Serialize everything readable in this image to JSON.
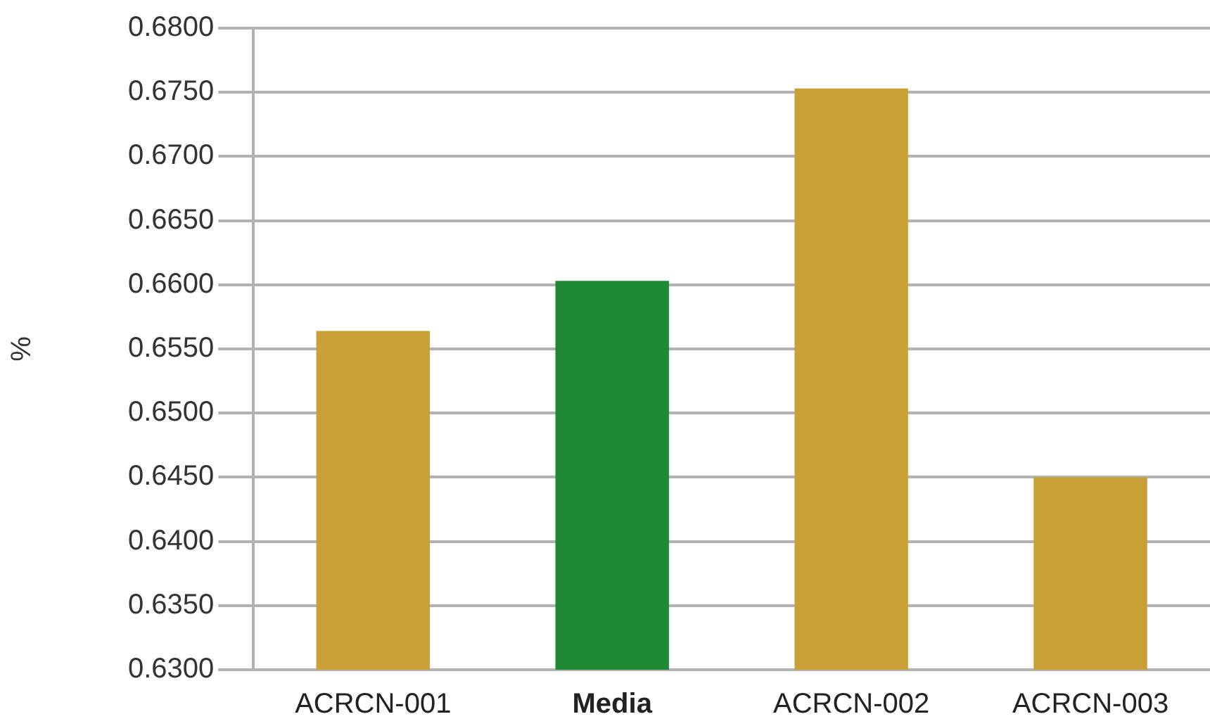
{
  "chart_data": {
    "type": "bar",
    "ylabel": "%",
    "categories": [
      "ACRCN-001",
      "Media",
      "ACRCN-002",
      "ACRCN-003"
    ],
    "values": [
      0.6564,
      0.6603,
      0.6753,
      0.645
    ],
    "colors": [
      "#c9a035",
      "#1f8a35",
      "#c9a035",
      "#c9a035"
    ],
    "ylim": [
      0.63,
      0.68
    ],
    "yticks": [
      {
        "value": 0.63,
        "label": "0.6300"
      },
      {
        "value": 0.635,
        "label": "0.6350"
      },
      {
        "value": 0.64,
        "label": "0.6400"
      },
      {
        "value": 0.645,
        "label": "0.6450"
      },
      {
        "value": 0.65,
        "label": "0.6500"
      },
      {
        "value": 0.655,
        "label": "0.6550"
      },
      {
        "value": 0.66,
        "label": "0.6600"
      },
      {
        "value": 0.665,
        "label": "0.6650"
      },
      {
        "value": 0.67,
        "label": "0.6700"
      },
      {
        "value": 0.675,
        "label": "0.6750"
      },
      {
        "value": 0.68,
        "label": "0.6800"
      }
    ],
    "grid": "y",
    "legend": false
  }
}
